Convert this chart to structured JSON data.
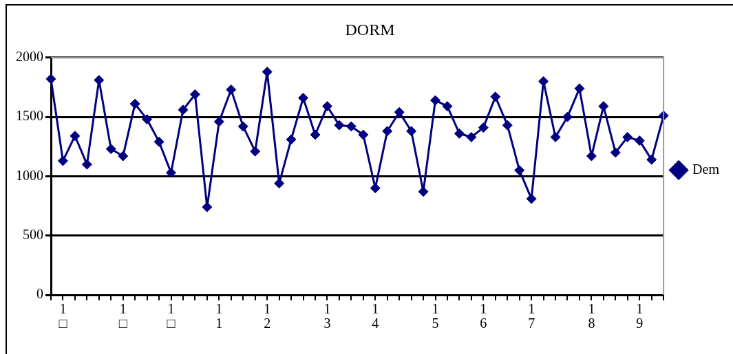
{
  "chart_data": {
    "type": "line",
    "title": "DORM",
    "categories": [
      null,
      "1□",
      null,
      null,
      null,
      null,
      "1□",
      null,
      null,
      null,
      "1□",
      null,
      null,
      null,
      "11",
      null,
      null,
      null,
      "12",
      null,
      null,
      null,
      null,
      "13",
      null,
      null,
      null,
      "14",
      null,
      null,
      null,
      null,
      "15",
      null,
      null,
      null,
      "16",
      null,
      null,
      null,
      "17",
      null,
      null,
      null,
      null,
      "18",
      null,
      null,
      null,
      "19",
      null,
      null
    ],
    "series": [
      {
        "name": "Dem",
        "color": "#000080",
        "values": [
          1820,
          1130,
          1340,
          1100,
          1810,
          1230,
          1170,
          1610,
          1480,
          1290,
          1030,
          1560,
          1690,
          740,
          1460,
          1730,
          1420,
          1210,
          1880,
          940,
          1310,
          1660,
          1350,
          1590,
          1430,
          1420,
          1350,
          900,
          1380,
          1540,
          1380,
          870,
          1640,
          1590,
          1360,
          1330,
          1410,
          1670,
          1430,
          1050,
          810,
          1800,
          1330,
          1500,
          1740,
          1170,
          1590,
          1200,
          1330,
          1300,
          1140,
          1510
        ]
      }
    ],
    "ylim": [
      0,
      2000
    ],
    "yticks": [
      0,
      500,
      1000,
      1500,
      2000
    ],
    "grid": "y",
    "legend": "right",
    "marker": "diamond",
    "line_style": "solid"
  }
}
